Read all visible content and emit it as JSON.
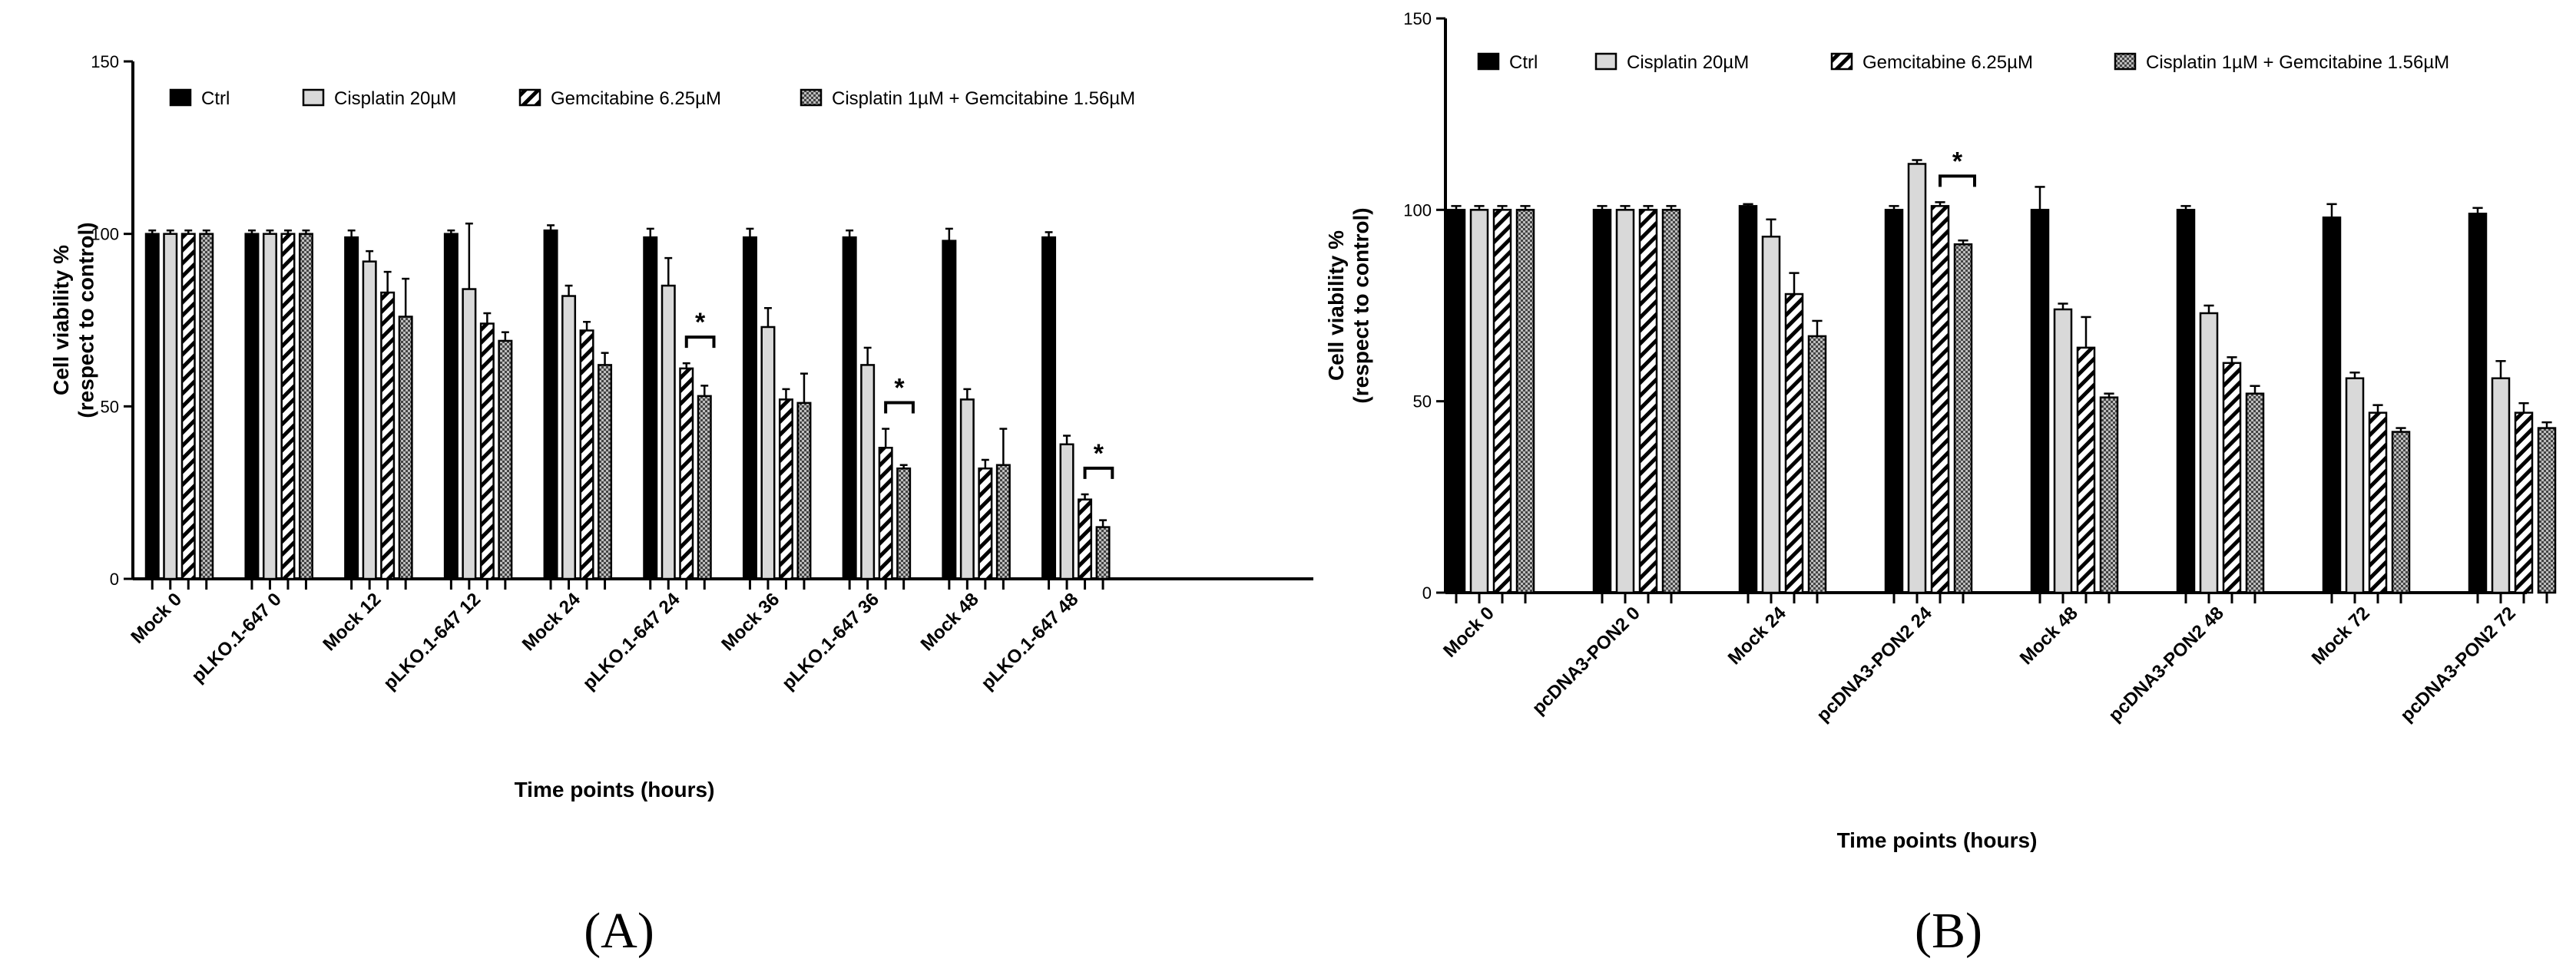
{
  "legend_labels": [
    "Ctrl",
    "Cisplatin 20µM",
    "Gemcitabine 6.25µM",
    "Cisplatin 1µM + Gemcitabine 1.56µM"
  ],
  "colors": {
    "ctrl": "#000000",
    "cis": "#d9d9d9",
    "gem_stripe": "#000000",
    "combo_dots": "#555555",
    "stroke": "#000000"
  },
  "chart_data": [
    {
      "type": "bar",
      "panel": "(A)",
      "ylabel": "Cell viability %\n(respect to control)",
      "xlabel": "Time points (hours)",
      "ylim": [
        0,
        150
      ],
      "yticks": [
        0,
        50,
        100,
        150
      ],
      "categories": [
        "Mock 0",
        "pLKO.1-647 0",
        "Mock 12",
        "pLKO.1-647 12",
        "Mock 24",
        "pLKO.1-647 24",
        "Mock 36",
        "pLKO.1-647 36",
        "Mock 48",
        "pLKO.1-647 48"
      ],
      "series": [
        {
          "name": "Ctrl",
          "values": [
            100,
            100,
            99,
            100,
            101,
            99,
            99,
            99,
            98,
            99
          ],
          "errors": [
            1,
            1,
            2,
            1,
            1.5,
            2.5,
            2.5,
            2,
            3.5,
            1.5
          ]
        },
        {
          "name": "Cisplatin 20µM",
          "values": [
            100,
            100,
            92,
            84,
            82,
            85,
            73,
            62,
            52,
            39
          ],
          "errors": [
            1,
            1,
            3,
            19,
            3,
            8,
            5.5,
            5,
            3,
            2.5
          ]
        },
        {
          "name": "Gemcitabine 6.25µM",
          "values": [
            100,
            100,
            83,
            74,
            72,
            61,
            52,
            38,
            32,
            23
          ],
          "errors": [
            1,
            1,
            6,
            3,
            2.5,
            1.5,
            3,
            5.5,
            2.5,
            1.5
          ]
        },
        {
          "name": "Cisplatin 1µM + Gemcitabine 1.56µM",
          "values": [
            100,
            100,
            76,
            69,
            62,
            53,
            51,
            32,
            33,
            15
          ],
          "errors": [
            1,
            1,
            11,
            2.5,
            3.5,
            3,
            8.5,
            1,
            10.5,
            2
          ]
        }
      ],
      "significance": [
        {
          "group": 5,
          "label": "*"
        },
        {
          "group": 7,
          "label": "*"
        },
        {
          "group": 9,
          "label": "*"
        }
      ]
    },
    {
      "type": "bar",
      "panel": "(B)",
      "ylabel": "Cell viability %\n(respect to control)",
      "xlabel": "Time points (hours)",
      "ylim": [
        0,
        150
      ],
      "yticks": [
        0,
        50,
        100,
        150
      ],
      "categories": [
        "Mock 0",
        "pcDNA3-PON2 0",
        "Mock 24",
        "pcDNA3-PON2 24",
        "Mock 48",
        "pcDNA3-PON2 48",
        "Mock 72",
        "pcDNA3-PON2 72"
      ],
      "series": [
        {
          "name": "Ctrl",
          "values": [
            100,
            100,
            101,
            100,
            100,
            100,
            98,
            99
          ],
          "errors": [
            1,
            1,
            0.5,
            1,
            6,
            1,
            3.5,
            1.5
          ]
        },
        {
          "name": "Cisplatin 20µM",
          "values": [
            100,
            100,
            93,
            112,
            74,
            73,
            56,
            56
          ],
          "errors": [
            1,
            1,
            4.5,
            1,
            1.5,
            2,
            1.5,
            4.5
          ]
        },
        {
          "name": "Gemcitabine 6.25µM",
          "values": [
            100,
            100,
            78,
            101,
            64,
            60,
            47,
            47
          ],
          "errors": [
            1,
            1,
            5.5,
            1,
            8,
            1.5,
            2,
            2.5
          ]
        },
        {
          "name": "Cisplatin 1µM + Gemcitabine 1.56µM",
          "values": [
            100,
            100,
            67,
            91,
            51,
            52,
            42,
            43
          ],
          "errors": [
            1,
            1,
            4,
            1,
            1,
            2,
            1,
            1.5
          ]
        }
      ],
      "significance": [
        {
          "group": 3,
          "label": "*"
        }
      ]
    }
  ]
}
